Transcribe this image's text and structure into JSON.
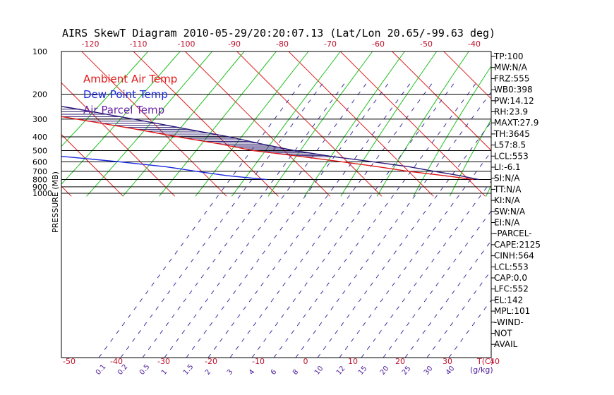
{
  "chart_data": {
    "type": "line",
    "title": "AIRS SkewT Diagram 2010-05-29/20:20:07.13 (Lat/Lon 20.65/-99.63 deg)",
    "ylabel": "PRESSURE (MB)",
    "y_scale": "log",
    "pressure_ticks": [
      100,
      200,
      300,
      400,
      500,
      600,
      700,
      800,
      900,
      1000
    ],
    "temp_ticks_bottom": [
      -50,
      -40,
      -30,
      -20,
      -10,
      0,
      10,
      20,
      30,
      40
    ],
    "temp_ticks_top": [
      -120,
      -110,
      -100,
      -90,
      -80,
      -70,
      -60,
      -50,
      -40
    ],
    "temp_unit_label": "T(C)",
    "mixing_ratio_ticks": [
      "0.1",
      "0.2",
      "0.5",
      "1",
      "1.5",
      "2",
      "3",
      "4",
      "6",
      "8",
      "10",
      "12",
      "15",
      "20",
      "25",
      "30",
      "40"
    ],
    "mixing_ratio_unit_label": "(g/kg)",
    "legend": [
      "Ambient Air Temp",
      "Dew Point Temp",
      "Air Parcel Temp"
    ],
    "series": [
      {
        "name": "Ambient Air Temp",
        "color": "#e01818",
        "points": [
          [
            100,
            -77
          ],
          [
            140,
            -74
          ],
          [
            170,
            -66
          ],
          [
            200,
            -56
          ],
          [
            250,
            -45
          ],
          [
            300,
            -34
          ],
          [
            350,
            -25
          ],
          [
            400,
            -18
          ],
          [
            450,
            -11
          ],
          [
            500,
            -6
          ],
          [
            550,
            2
          ],
          [
            600,
            9
          ],
          [
            650,
            15
          ],
          [
            700,
            20
          ],
          [
            750,
            26
          ],
          [
            800,
            31
          ]
        ]
      },
      {
        "name": "Dew Point Temp",
        "color": "#1a28e0",
        "points": [
          [
            100,
            -90
          ],
          [
            140,
            -88
          ],
          [
            200,
            -79
          ],
          [
            250,
            -74
          ],
          [
            300,
            -85
          ],
          [
            350,
            -85
          ],
          [
            400,
            -83
          ],
          [
            450,
            -68
          ],
          [
            500,
            -55
          ],
          [
            550,
            -44
          ],
          [
            600,
            -34
          ],
          [
            650,
            -26
          ],
          [
            700,
            -21
          ],
          [
            750,
            -16
          ],
          [
            800,
            -9
          ]
        ]
      },
      {
        "name": "Air Parcel Temp",
        "color": "#2a1878",
        "points": [
          [
            100,
            -92
          ],
          [
            140,
            -74
          ],
          [
            170,
            -59
          ],
          [
            200,
            -48
          ],
          [
            250,
            -33
          ],
          [
            300,
            -23
          ],
          [
            350,
            -15
          ],
          [
            400,
            -8
          ],
          [
            450,
            -3
          ],
          [
            500,
            2
          ],
          [
            550,
            8
          ],
          [
            600,
            15
          ],
          [
            650,
            21
          ],
          [
            700,
            25
          ],
          [
            750,
            29
          ],
          [
            800,
            32
          ]
        ]
      }
    ],
    "indices": [
      "TP:100",
      "MW:N/A",
      "FRZ:555",
      "WB0:398",
      "PW:14.12",
      "RH:23.9",
      "MAXT:27.9",
      "TH:3645",
      "L57:8.5",
      "LCL:553",
      "LI:-6.1",
      "SI:N/A",
      "TT:N/A",
      "KI:N/A",
      "SW:N/A",
      "EI:N/A",
      "-PARCEL-",
      "CAPE:2125",
      "CINH:564",
      "LCL:553",
      "CAP:0.0",
      "LFC:552",
      "EL:142",
      "MPL:101",
      "-WIND-",
      "NOT",
      "AVAIL"
    ],
    "colors": {
      "dry_adiabat": "#e02020",
      "moist_adiabat": "#20c020",
      "mixing_ratio": "#4030a0",
      "hatch": "#302070"
    },
    "grid": true,
    "legend_position": "top-left"
  }
}
